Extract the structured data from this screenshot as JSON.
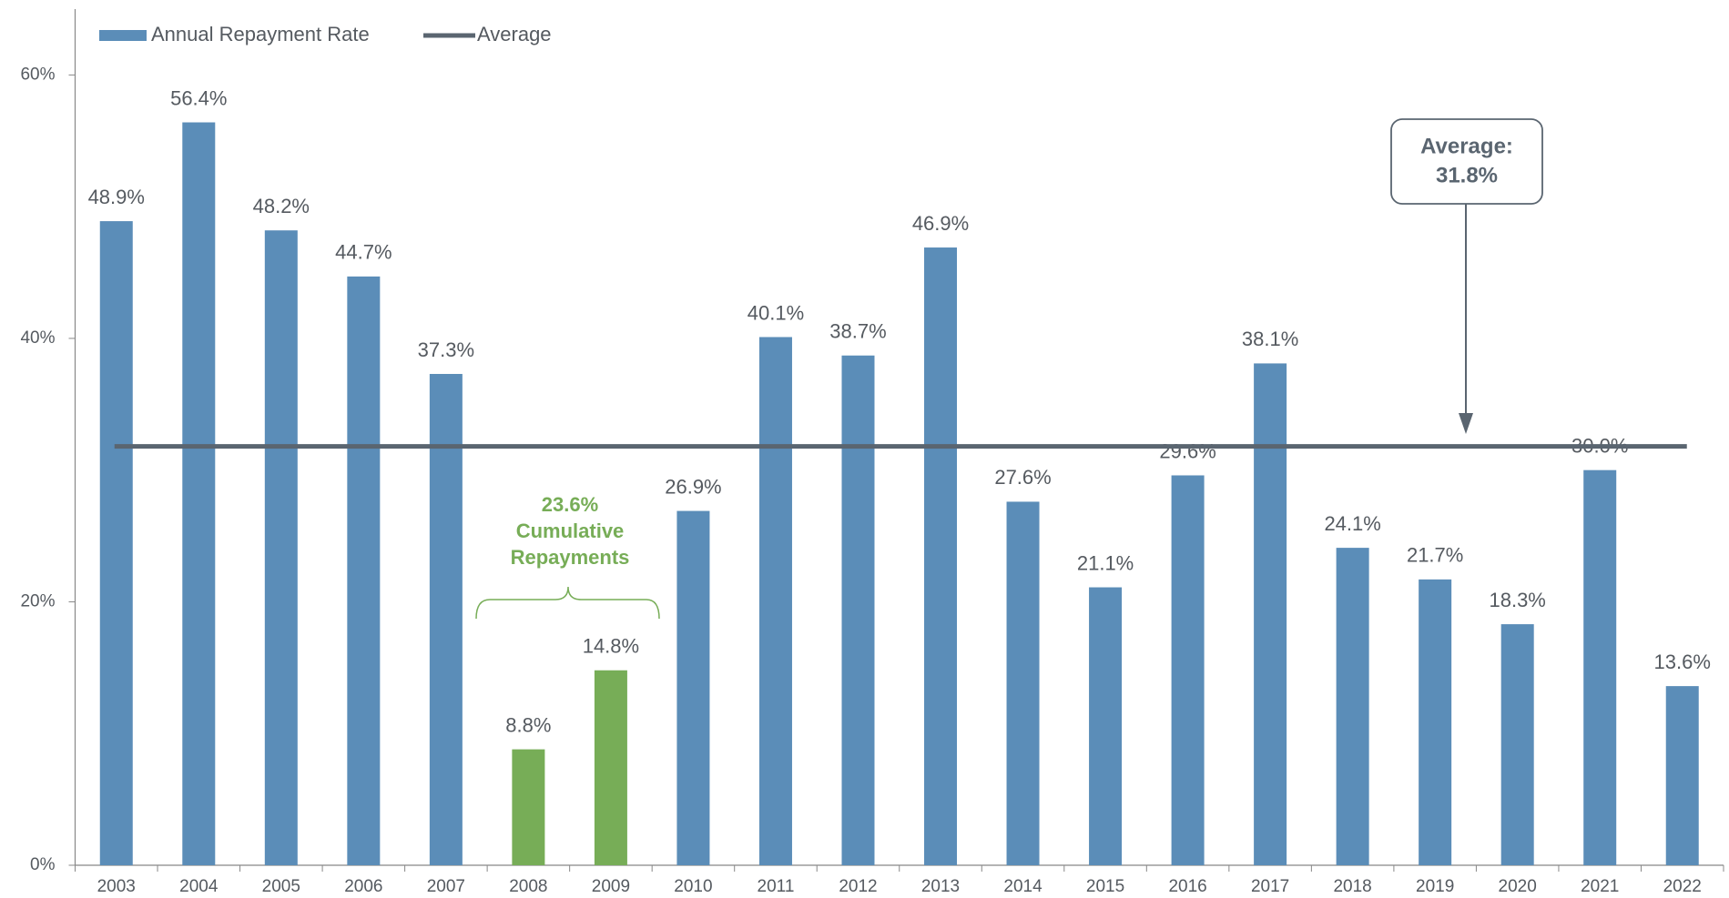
{
  "chart_data": {
    "type": "bar",
    "categories": [
      "2003",
      "2004",
      "2005",
      "2006",
      "2007",
      "2008",
      "2009",
      "2010",
      "2011",
      "2012",
      "2013",
      "2014",
      "2015",
      "2016",
      "2017",
      "2018",
      "2019",
      "2020",
      "2021",
      "2022"
    ],
    "values": [
      48.9,
      56.4,
      48.2,
      44.7,
      37.3,
      8.8,
      14.8,
      26.9,
      40.1,
      38.7,
      46.9,
      27.6,
      21.1,
      29.6,
      38.1,
      24.1,
      21.7,
      18.3,
      30.0,
      13.6
    ],
    "value_labels": [
      "48.9%",
      "56.4%",
      "48.2%",
      "44.7%",
      "37.3%",
      "8.8%",
      "14.8%",
      "26.9%",
      "40.1%",
      "38.7%",
      "46.9%",
      "27.6%",
      "21.1%",
      "29.6%",
      "38.1%",
      "24.1%",
      "21.7%",
      "18.3%",
      "30.0%",
      "13.6%"
    ],
    "name": "Annual Repayment Rate",
    "color": "#5b8db8",
    "colors": [
      "#5b8db8",
      "#5b8db8",
      "#5b8db8",
      "#5b8db8",
      "#5b8db8",
      "#77ad57",
      "#77ad57",
      "#5b8db8",
      "#5b8db8",
      "#5b8db8",
      "#5b8db8",
      "#5b8db8",
      "#5b8db8",
      "#5b8db8",
      "#5b8db8",
      "#5b8db8",
      "#5b8db8",
      "#5b8db8",
      "#5b8db8",
      "#5b8db8"
    ],
    "average": {
      "name": "Average",
      "value": 31.8,
      "color": "#5a6570",
      "label_lines": [
        "Average:",
        "31.8%"
      ]
    },
    "annotation": {
      "lines": [
        "23.6%",
        "Cumulative",
        "Repayments"
      ],
      "color": "#77ad57"
    },
    "ylim": [
      0,
      65
    ],
    "yticks": [
      {
        "value": 0,
        "label": "0%"
      },
      {
        "value": 20,
        "label": "20%"
      },
      {
        "value": 40,
        "label": "40%"
      },
      {
        "value": 60,
        "label": "60%"
      }
    ],
    "legend": "top-left"
  }
}
